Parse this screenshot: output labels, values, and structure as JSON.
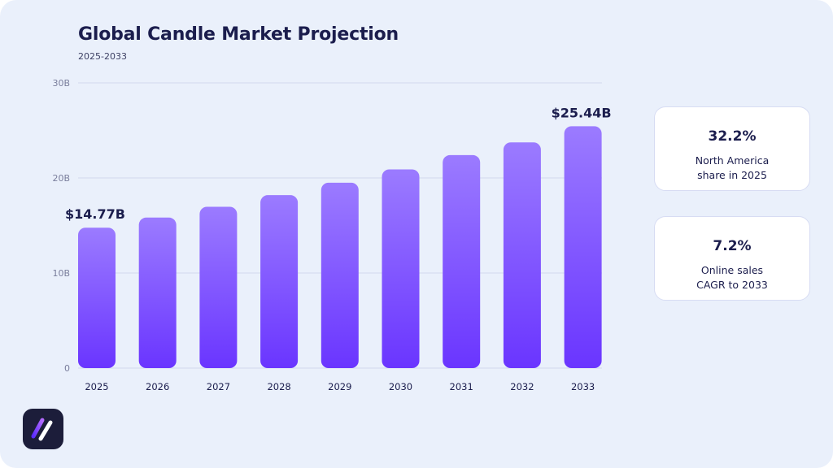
{
  "header": {
    "title": "Global Candle Market Projection",
    "subtitle": "2025-2033"
  },
  "chart_data": {
    "type": "bar",
    "categories": [
      "2025",
      "2026",
      "2027",
      "2028",
      "2029",
      "2030",
      "2031",
      "2032",
      "2033"
    ],
    "values": [
      14.77,
      15.83,
      16.97,
      18.19,
      19.5,
      20.9,
      22.4,
      23.74,
      25.44
    ],
    "ylim": [
      0,
      30
    ],
    "yticks": [
      "0",
      "10B",
      "20B",
      "30B"
    ],
    "data_labels": [
      {
        "index": 0,
        "text": "$14.77B"
      },
      {
        "index": 8,
        "text": "$25.44B"
      }
    ],
    "grid": true,
    "bar_color_top": "#9b7bff",
    "bar_color_bottom": "#6a35ff"
  },
  "stats": [
    {
      "value": "32.2%",
      "label_line1": "North America",
      "label_line2": "share in 2025"
    },
    {
      "value": "7.2%",
      "label_line1": "Online sales",
      "label_line2": "CAGR to 2033"
    }
  ],
  "logo": {
    "icon": "brand-logo-icon"
  }
}
